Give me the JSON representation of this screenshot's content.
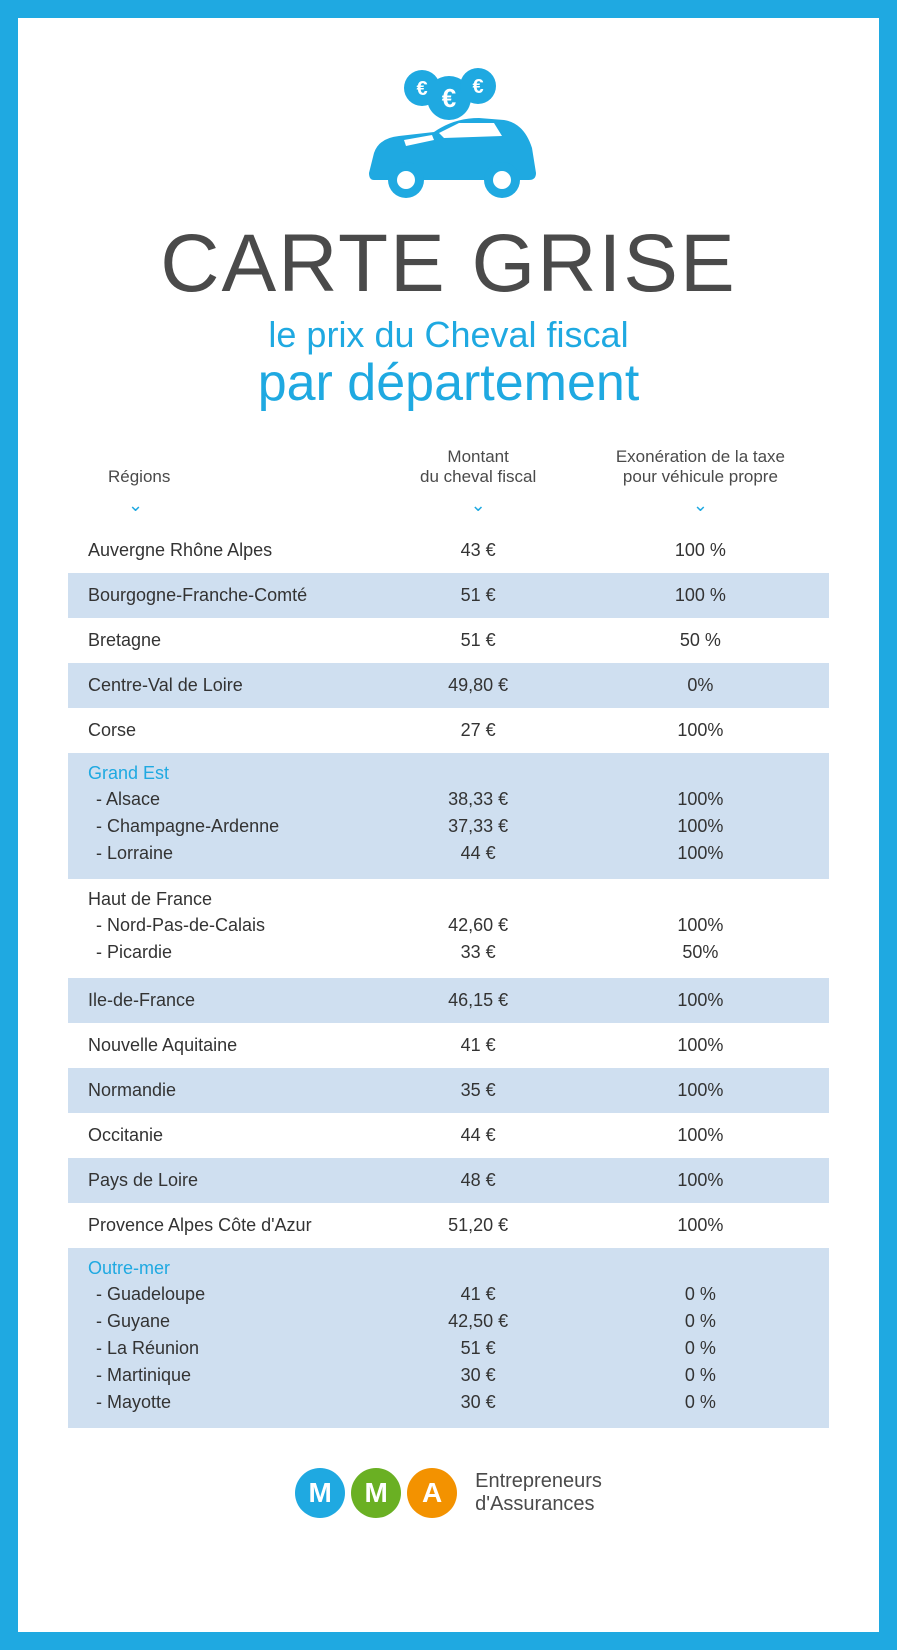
{
  "header": {
    "title": "CARTE GRISE",
    "subtitle1": "le prix du Cheval fiscal",
    "subtitle2": "par département"
  },
  "colors": {
    "accent": "#1fa9e1",
    "text": "#4a4a4a",
    "row_alt": "#cfdff0",
    "logo_blue": "#1fa9e1",
    "logo_green": "#6ab023",
    "logo_orange": "#f39200"
  },
  "table": {
    "columns": {
      "col1": "Régions",
      "col2": "Montant\ndu cheval fiscal",
      "col3": "Exonération de la taxe\npour véhicule propre"
    },
    "rows": [
      {
        "type": "simple",
        "alt": false,
        "region": "Auvergne Rhône Alpes",
        "montant": "43 €",
        "exo": "100 %"
      },
      {
        "type": "simple",
        "alt": true,
        "region": "Bourgogne-Franche-Comté",
        "montant": "51 €",
        "exo": "100 %"
      },
      {
        "type": "simple",
        "alt": false,
        "region": "Bretagne",
        "montant": "51 €",
        "exo": "50 %"
      },
      {
        "type": "simple",
        "alt": true,
        "region": "Centre-Val de Loire",
        "montant": "49,80 €",
        "exo": "0%"
      },
      {
        "type": "simple",
        "alt": false,
        "region": "Corse",
        "montant": "27 €",
        "exo": "100%"
      },
      {
        "type": "group",
        "alt": true,
        "title_color": "blue",
        "title": "Grand Est",
        "sub": [
          {
            "label": "- Alsace",
            "montant": "38,33 €",
            "exo": "100%"
          },
          {
            "label": "- Champagne-Ardenne",
            "montant": "37,33 €",
            "exo": "100%"
          },
          {
            "label": "- Lorraine",
            "montant": "44 €",
            "exo": "100%"
          }
        ]
      },
      {
        "type": "group",
        "alt": false,
        "title_color": "black",
        "title": "Haut de France",
        "sub": [
          {
            "label": "- Nord-Pas-de-Calais",
            "montant": "42,60 €",
            "exo": "100%"
          },
          {
            "label": "- Picardie",
            "montant": "33 €",
            "exo": "50%"
          }
        ]
      },
      {
        "type": "simple",
        "alt": true,
        "region": "Ile-de-France",
        "montant": "46,15 €",
        "exo": "100%"
      },
      {
        "type": "simple",
        "alt": false,
        "region": "Nouvelle Aquitaine",
        "montant": "41 €",
        "exo": "100%"
      },
      {
        "type": "simple",
        "alt": true,
        "region": "Normandie",
        "montant": "35 €",
        "exo": "100%"
      },
      {
        "type": "simple",
        "alt": false,
        "region": "Occitanie",
        "montant": "44 €",
        "exo": "100%"
      },
      {
        "type": "simple",
        "alt": true,
        "region": "Pays de Loire",
        "montant": "48 €",
        "exo": "100%"
      },
      {
        "type": "simple",
        "alt": false,
        "region": "Provence Alpes Côte d'Azur",
        "montant": "51,20 €",
        "exo": "100%"
      },
      {
        "type": "group",
        "alt": true,
        "title_color": "blue",
        "title": "Outre-mer",
        "sub": [
          {
            "label": "- Guadeloupe",
            "montant": "41 €",
            "exo": "0 %"
          },
          {
            "label": "- Guyane",
            "montant": "42,50 €",
            "exo": "0 %"
          },
          {
            "label": "- La Réunion",
            "montant": "51 €",
            "exo": "0 %"
          },
          {
            "label": "- Martinique",
            "montant": "30 €",
            "exo": "0 %"
          },
          {
            "label": "- Mayotte",
            "montant": "30 €",
            "exo": "0 %"
          }
        ]
      }
    ]
  },
  "footer": {
    "letters": [
      "M",
      "M",
      "A"
    ],
    "tagline1": "Entrepreneurs",
    "tagline2": "d'Assurances"
  }
}
